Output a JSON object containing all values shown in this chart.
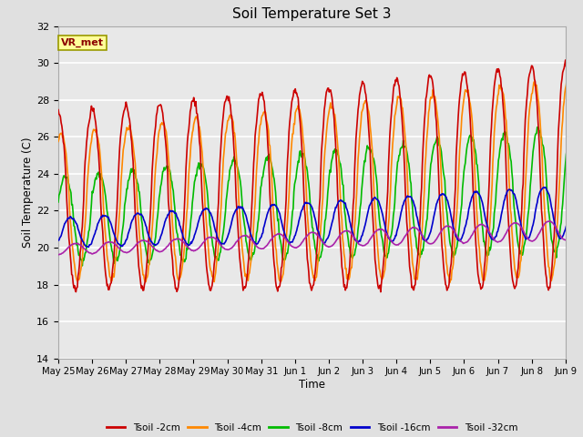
{
  "title": "Soil Temperature Set 3",
  "xlabel": "Time",
  "ylabel": "Soil Temperature (C)",
  "ylim": [
    14,
    32
  ],
  "yticks": [
    14,
    16,
    18,
    20,
    22,
    24,
    26,
    28,
    30,
    32
  ],
  "background_color": "#e0e0e0",
  "plot_bg_color": "#e8e8e8",
  "grid_color": "white",
  "annotation_text": "VR_met",
  "annotation_box_color": "#ffff99",
  "annotation_border_color": "#999900",
  "series": [
    {
      "label": "Tsoil -2cm",
      "color": "#cc0000",
      "lw": 1.2
    },
    {
      "label": "Tsoil -4cm",
      "color": "#ff8800",
      "lw": 1.2
    },
    {
      "label": "Tsoil -8cm",
      "color": "#00bb00",
      "lw": 1.2
    },
    {
      "label": "Tsoil -16cm",
      "color": "#0000cc",
      "lw": 1.2
    },
    {
      "label": "Tsoil -32cm",
      "color": "#aa22aa",
      "lw": 1.2
    }
  ],
  "x_tick_labels": [
    "May 25",
    "May 26",
    "May 27",
    "May 28",
    "May 29",
    "May 30",
    "May 31",
    "Jun 1",
    "Jun 2",
    "Jun 3",
    "Jun 4",
    "Jun 5",
    "Jun 6",
    "Jun 7",
    "Jun 8",
    "Jun 9"
  ],
  "n_days": 16
}
